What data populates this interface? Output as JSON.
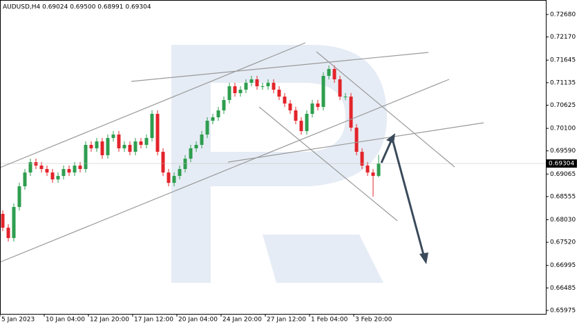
{
  "chart_data": {
    "type": "candlestick",
    "title": "AUDUSD,H4  0.69024 0.69500 0.68991 0.69304",
    "categories": [
      "5 Jan 2023",
      null,
      null,
      null,
      null,
      null,
      null,
      null,
      "10 Jan 04:00",
      null,
      null,
      null,
      null,
      null,
      null,
      null,
      "12 Jan 20:00",
      null,
      null,
      null,
      null,
      null,
      null,
      null,
      "17 Jan 12:00",
      null,
      null,
      null,
      null,
      null,
      null,
      null,
      "20 Jan 04:00",
      null,
      null,
      null,
      null,
      null,
      null,
      null,
      "24 Jan 20:00",
      null,
      null,
      null,
      null,
      null,
      null,
      null,
      "27 Jan 12:00",
      null,
      null,
      null,
      null,
      null,
      null,
      null,
      "1 Feb 04:00",
      null,
      null,
      null,
      null,
      null,
      null,
      null,
      "3 Feb 20:00",
      null,
      null,
      null,
      null
    ],
    "open": [
      0.68163,
      0.6785,
      0.67616,
      0.68319,
      0.68788,
      0.691,
      0.69335,
      0.69257,
      0.69179,
      0.691,
      0.68944,
      0.69022,
      0.69179,
      0.691,
      0.69257,
      0.69179,
      0.69726,
      0.69648,
      0.69804,
      0.69491,
      0.69882,
      0.6996,
      0.69648,
      0.69726,
      0.69569,
      0.69804,
      0.69726,
      0.69882,
      0.70429,
      0.69569,
      0.691,
      0.68866,
      0.69022,
      0.69179,
      0.69413,
      0.69648,
      0.69726,
      0.6996,
      0.70273,
      0.70351,
      0.70507,
      0.70742,
      0.71054,
      0.70898,
      0.70976,
      0.71132,
      0.71211,
      0.71054,
      0.71054,
      0.71132,
      0.70976,
      0.7082,
      0.70663,
      0.70507,
      0.70273,
      0.70038,
      0.70429,
      0.70663,
      0.70585,
      0.71289,
      0.71445,
      0.71211,
      0.7082,
      0.7082,
      0.70116,
      0.69569,
      0.69257,
      0.691,
      0.69024
    ],
    "high": [
      0.68243,
      0.6793,
      0.68399,
      0.68868,
      0.6918,
      0.69415,
      0.69415,
      0.69337,
      0.69259,
      0.6918,
      0.69102,
      0.69259,
      0.69259,
      0.69337,
      0.69337,
      0.69806,
      0.69806,
      0.69884,
      0.69884,
      0.69962,
      0.7004,
      0.7004,
      0.69806,
      0.69806,
      0.69884,
      0.69884,
      0.69962,
      0.70509,
      0.70509,
      0.69649,
      0.6918,
      0.69102,
      0.69259,
      0.69493,
      0.69728,
      0.69806,
      0.7004,
      0.70353,
      0.70431,
      0.70587,
      0.70822,
      0.71134,
      0.71134,
      0.71056,
      0.71212,
      0.71291,
      0.71291,
      0.71134,
      0.71212,
      0.71212,
      0.71056,
      0.709,
      0.70743,
      0.70587,
      0.70353,
      0.70509,
      0.70743,
      0.70743,
      0.71369,
      0.71525,
      0.71525,
      0.71291,
      0.709,
      0.709,
      0.70196,
      0.69649,
      0.69337,
      0.6918,
      0.695
    ],
    "low": [
      0.6777,
      0.67536,
      0.67536,
      0.68239,
      0.68708,
      0.6902,
      0.69177,
      0.69099,
      0.6902,
      0.68864,
      0.68864,
      0.68942,
      0.6902,
      0.6902,
      0.69099,
      0.69099,
      0.69568,
      0.69568,
      0.69411,
      0.69411,
      0.69802,
      0.69568,
      0.69568,
      0.69489,
      0.69489,
      0.69646,
      0.69646,
      0.69802,
      0.69489,
      0.6902,
      0.68786,
      0.68786,
      0.68942,
      0.69099,
      0.69333,
      0.69568,
      0.69646,
      0.6988,
      0.70193,
      0.70271,
      0.70427,
      0.70662,
      0.70818,
      0.70818,
      0.70896,
      0.71052,
      0.70974,
      0.70974,
      0.70974,
      0.70896,
      0.7074,
      0.70583,
      0.70427,
      0.70193,
      0.69958,
      0.69958,
      0.70349,
      0.70505,
      0.70505,
      0.71209,
      0.71131,
      0.7074,
      0.7074,
      0.70036,
      0.69489,
      0.69177,
      0.6902,
      0.68553,
      0.68991
    ],
    "close": [
      0.6785,
      0.67616,
      0.68319,
      0.68788,
      0.691,
      0.69335,
      0.69257,
      0.69179,
      0.691,
      0.68944,
      0.69022,
      0.69179,
      0.691,
      0.69257,
      0.69179,
      0.69726,
      0.69648,
      0.69804,
      0.69491,
      0.69882,
      0.6996,
      0.69648,
      0.69726,
      0.69569,
      0.69804,
      0.69726,
      0.69882,
      0.70429,
      0.69569,
      0.691,
      0.68866,
      0.69022,
      0.69179,
      0.69413,
      0.69648,
      0.69726,
      0.6996,
      0.70273,
      0.70351,
      0.70507,
      0.70742,
      0.71054,
      0.70898,
      0.70976,
      0.71132,
      0.71211,
      0.71054,
      0.71054,
      0.71132,
      0.70976,
      0.7082,
      0.70663,
      0.70507,
      0.70273,
      0.70038,
      0.70429,
      0.70663,
      0.70585,
      0.71289,
      0.71445,
      0.71211,
      0.7082,
      0.7082,
      0.70116,
      0.69569,
      0.69257,
      0.691,
      0.69024,
      0.69304
    ],
    "up_color": "#2e9e4f",
    "down_color": "#e3242b",
    "ylim": [
      0.65897,
      0.73008
    ],
    "yticks": [
      {
        "value": 0.7268,
        "label": "0.72680"
      },
      {
        "value": 0.7217,
        "label": "0.72170"
      },
      {
        "value": 0.71645,
        "label": "0.71645"
      },
      {
        "value": 0.71135,
        "label": "0.71135"
      },
      {
        "value": 0.70625,
        "label": "0.70625"
      },
      {
        "value": 0.701,
        "label": "0.70100"
      },
      {
        "value": 0.6959,
        "label": "0.69590"
      },
      {
        "value": 0.69065,
        "label": "0.69065"
      },
      {
        "value": 0.68555,
        "label": "0.68555"
      },
      {
        "value": 0.6803,
        "label": "0.68030"
      },
      {
        "value": 0.6752,
        "label": "0.67520"
      },
      {
        "value": 0.66995,
        "label": "0.66995"
      },
      {
        "value": 0.66485,
        "label": "0.66485"
      },
      {
        "value": 0.65975,
        "label": "0.65975"
      }
    ],
    "last_price": {
      "value": 0.69304,
      "label": "0.69304"
    }
  }
}
